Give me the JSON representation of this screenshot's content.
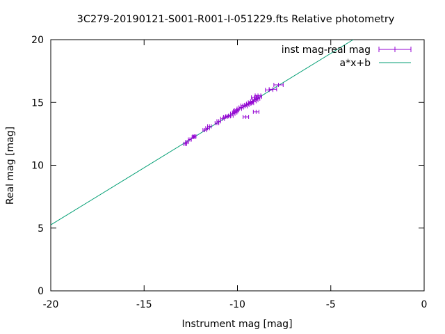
{
  "chart_data": {
    "type": "scatter",
    "title": "3C279-20190121-S001-R001-I-051229.fts Relative photometry",
    "xlabel": "Instrument mag [mag]",
    "ylabel": "Real mag [mag]",
    "xlim": [
      -20,
      0
    ],
    "ylim": [
      0,
      20
    ],
    "xticks": [
      -20,
      -15,
      -10,
      -5,
      0
    ],
    "xtick_labels": [
      "-20",
      "-15",
      "-10",
      "-5",
      "0"
    ],
    "yticks": [
      0,
      5,
      10,
      15,
      20
    ],
    "ytick_labels": [
      "0",
      "5",
      "10",
      "15",
      "20"
    ],
    "grid": false,
    "legend_position": "top-right",
    "series": [
      {
        "name": "inst mag-real mag",
        "kind": "points_with_xerror",
        "color": "#9400d3",
        "points": [
          {
            "x": -12.8,
            "y": 11.7,
            "xerr": 0.08
          },
          {
            "x": -12.7,
            "y": 11.85,
            "xerr": 0.08
          },
          {
            "x": -12.55,
            "y": 12.05,
            "xerr": 0.08
          },
          {
            "x": -12.35,
            "y": 12.25,
            "xerr": 0.08
          },
          {
            "x": -12.3,
            "y": 12.3,
            "xerr": 0.08
          },
          {
            "x": -11.75,
            "y": 12.8,
            "xerr": 0.1
          },
          {
            "x": -11.6,
            "y": 12.95,
            "xerr": 0.1
          },
          {
            "x": -11.5,
            "y": 13.1,
            "xerr": 0.1
          },
          {
            "x": -11.1,
            "y": 13.35,
            "xerr": 0.1
          },
          {
            "x": -11.0,
            "y": 13.5,
            "xerr": 0.1
          },
          {
            "x": -10.8,
            "y": 13.7,
            "xerr": 0.1
          },
          {
            "x": -10.65,
            "y": 13.85,
            "xerr": 0.1
          },
          {
            "x": -10.5,
            "y": 13.9,
            "xerr": 0.12
          },
          {
            "x": -10.35,
            "y": 13.95,
            "xerr": 0.12
          },
          {
            "x": -10.25,
            "y": 14.1,
            "xerr": 0.12
          },
          {
            "x": -10.15,
            "y": 14.2,
            "xerr": 0.12
          },
          {
            "x": -10.1,
            "y": 14.3,
            "xerr": 0.12
          },
          {
            "x": -10.05,
            "y": 14.4,
            "xerr": 0.12
          },
          {
            "x": -9.9,
            "y": 14.5,
            "xerr": 0.12
          },
          {
            "x": -9.8,
            "y": 14.6,
            "xerr": 0.12
          },
          {
            "x": -9.7,
            "y": 14.75,
            "xerr": 0.12
          },
          {
            "x": -9.6,
            "y": 14.7,
            "xerr": 0.12
          },
          {
            "x": -9.5,
            "y": 14.8,
            "xerr": 0.12
          },
          {
            "x": -9.4,
            "y": 14.9,
            "xerr": 0.12
          },
          {
            "x": -9.3,
            "y": 15.0,
            "xerr": 0.12
          },
          {
            "x": -9.25,
            "y": 14.95,
            "xerr": 0.12
          },
          {
            "x": -9.15,
            "y": 15.1,
            "xerr": 0.15
          },
          {
            "x": -9.05,
            "y": 15.2,
            "xerr": 0.15
          },
          {
            "x": -9.1,
            "y": 15.4,
            "xerr": 0.15
          },
          {
            "x": -8.95,
            "y": 15.3,
            "xerr": 0.15
          },
          {
            "x": -8.9,
            "y": 15.55,
            "xerr": 0.15
          },
          {
            "x": -8.85,
            "y": 15.45,
            "xerr": 0.15
          },
          {
            "x": -9.55,
            "y": 13.85,
            "xerr": 0.15
          },
          {
            "x": -9.0,
            "y": 14.25,
            "xerr": 0.15
          },
          {
            "x": -8.3,
            "y": 16.0,
            "xerr": 0.2
          },
          {
            "x": -8.1,
            "y": 16.05,
            "xerr": 0.2
          },
          {
            "x": -7.8,
            "y": 16.4,
            "xerr": 0.25
          }
        ]
      },
      {
        "name": "a*x+b",
        "kind": "line",
        "color": "#009e73",
        "x": [
          -20,
          -3.8
        ],
        "y": [
          5.25,
          20
        ]
      }
    ]
  }
}
